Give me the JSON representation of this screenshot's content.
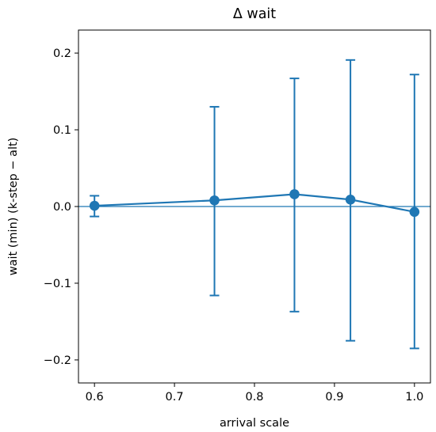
{
  "chart_data": {
    "type": "line",
    "title": "Δ wait",
    "xlabel": "arrival scale",
    "ylabel": "wait (min)  (k-step − alt)",
    "xlim": [
      0.58,
      1.02
    ],
    "ylim": [
      -0.23,
      0.23
    ],
    "x_ticks": [
      0.6,
      0.7,
      0.8,
      0.9,
      1.0
    ],
    "x_tick_labels": [
      "0.6",
      "0.7",
      "0.8",
      "0.9",
      "1.0"
    ],
    "y_ticks": [
      -0.2,
      -0.1,
      0.0,
      0.1,
      0.2
    ],
    "y_tick_labels": [
      "−0.2",
      "−0.1",
      "0.0",
      "0.1",
      "0.2"
    ],
    "reference_line_y": 0.0,
    "grid": false,
    "series": [
      {
        "x": [
          0.6,
          0.75,
          0.85,
          0.92,
          1.0
        ],
        "y": [
          0.001,
          0.008,
          0.016,
          0.009,
          -0.007
        ],
        "err_low": [
          -0.013,
          -0.116,
          -0.137,
          -0.175,
          -0.185
        ],
        "err_high": [
          0.014,
          0.13,
          0.167,
          0.191,
          0.172
        ],
        "color": "#1f77b4"
      }
    ]
  }
}
